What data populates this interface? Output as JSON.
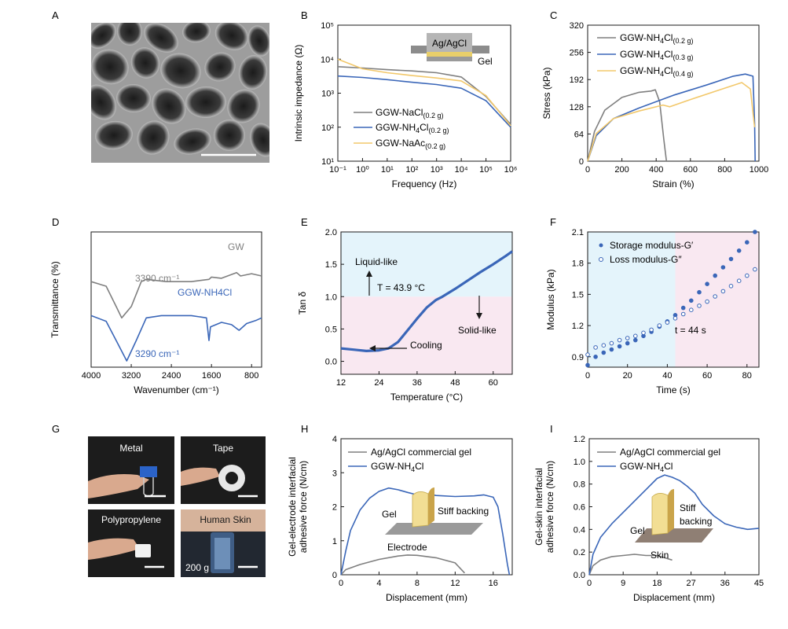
{
  "panels": {
    "A": {
      "letter": "A"
    },
    "B": {
      "letter": "B"
    },
    "C": {
      "letter": "C"
    },
    "D": {
      "letter": "D"
    },
    "E": {
      "letter": "E"
    },
    "F": {
      "letter": "F"
    },
    "G": {
      "letter": "G",
      "photos": [
        "Metal",
        "Tape",
        "Polypropylene",
        "Human Skin"
      ],
      "weight_label": "200 g"
    },
    "H": {
      "letter": "H"
    },
    "I": {
      "letter": "I"
    }
  },
  "colors": {
    "gray": "#7f7f7f",
    "blue": "#3a66b8",
    "yellow": "#f2c86b",
    "cyan_bg": "#e4f4fb",
    "pink_bg": "#f9e8f1"
  },
  "chart_data": [
    {
      "id": "B",
      "type": "line",
      "xlabel": "Frequency (Hz)",
      "ylabel": "Intrinsic impedance (Ω)",
      "xscale": "log",
      "yscale": "log",
      "xlim": [
        0.1,
        1000000
      ],
      "ylim": [
        10,
        100000
      ],
      "xticks": [
        "10⁻¹",
        "10⁰",
        "10¹",
        "10²",
        "10³",
        "10⁴",
        "10⁵",
        "10⁶"
      ],
      "yticks": [
        "10¹",
        "10²",
        "10³",
        "10⁴",
        "10⁵"
      ],
      "inset_labels": [
        "Ag/AgCl",
        "Gel"
      ],
      "legend": [
        "GGW-NaCl(0.2 g)",
        "GGW-NH4Cl(0.2 g)",
        "GGW-NaAc(0.2 g)"
      ],
      "series": [
        {
          "name": "GGW-NaCl",
          "color": "gray",
          "x": [
            0.1,
            1,
            10,
            100,
            1000,
            10000,
            100000,
            1000000
          ],
          "y": [
            6000,
            5500,
            4900,
            4500,
            4000,
            3000,
            800,
            120
          ]
        },
        {
          "name": "GGW-NH4Cl",
          "color": "blue",
          "x": [
            0.1,
            1,
            10,
            100,
            1000,
            10000,
            100000,
            1000000
          ],
          "y": [
            3200,
            2900,
            2500,
            2100,
            1800,
            1400,
            600,
            100
          ]
        },
        {
          "name": "GGW-NaAc",
          "color": "yellow",
          "x": [
            0.1,
            1,
            10,
            100,
            1000,
            10000,
            100000,
            1000000
          ],
          "y": [
            10000,
            5200,
            4000,
            3300,
            2800,
            2300,
            850,
            110
          ]
        }
      ]
    },
    {
      "id": "C",
      "type": "line",
      "xlabel": "Strain (%)",
      "ylabel": "Stress (kPa)",
      "xlim": [
        0,
        1000
      ],
      "ylim": [
        0,
        320
      ],
      "xticks": [
        0,
        200,
        400,
        600,
        800,
        1000
      ],
      "yticks": [
        0,
        64,
        128,
        192,
        256,
        320
      ],
      "legend": [
        "GGW-NH4Cl(0.2 g)",
        "GGW-NH4Cl(0.3 g)",
        "GGW-NH4Cl(0.4 g)"
      ],
      "series": [
        {
          "name": "0.2 g",
          "color": "gray",
          "x": [
            0,
            40,
            100,
            200,
            300,
            370,
            395,
            420,
            445,
            460
          ],
          "y": [
            0,
            70,
            120,
            150,
            162,
            165,
            168,
            140,
            50,
            0
          ]
        },
        {
          "name": "0.3 g",
          "color": "blue",
          "x": [
            0,
            50,
            150,
            300,
            500,
            700,
            850,
            920,
            965,
            975,
            978
          ],
          "y": [
            0,
            60,
            100,
            125,
            155,
            180,
            200,
            205,
            200,
            90,
            0
          ]
        },
        {
          "name": "0.4 g",
          "color": "yellow",
          "x": [
            0,
            50,
            150,
            300,
            440,
            480,
            600,
            750,
            900,
            950,
            975
          ],
          "y": [
            0,
            65,
            100,
            118,
            132,
            128,
            145,
            165,
            185,
            170,
            80
          ]
        }
      ]
    },
    {
      "id": "D",
      "type": "line",
      "xlabel": "Wavenumber (cm⁻¹)",
      "ylabel": "Transmittance (%)",
      "xlim": [
        4000,
        600
      ],
      "xticks": [
        4000,
        3200,
        2400,
        1600,
        800
      ],
      "annotations": [
        "GW",
        "3390 cm⁻¹",
        "GGW-NH4Cl",
        "3290 cm⁻¹"
      ],
      "series": [
        {
          "name": "GW",
          "color": "gray",
          "x": [
            4000,
            3700,
            3500,
            3390,
            3200,
            3000,
            2900,
            2500,
            2000,
            1650,
            1600,
            1400,
            1100,
            1020,
            800,
            600
          ],
          "y": [
            0.3,
            0.34,
            0.52,
            0.62,
            0.52,
            0.3,
            0.28,
            0.3,
            0.3,
            0.28,
            0.26,
            0.27,
            0.22,
            0.25,
            0.23,
            0.25
          ]
        },
        {
          "name": "GGW-NH4Cl",
          "color": "blue",
          "x": [
            4000,
            3700,
            3500,
            3290,
            3100,
            2900,
            2600,
            2000,
            1700,
            1650,
            1620,
            1400,
            1200,
            1050,
            900,
            700,
            600
          ],
          "y": [
            0.6,
            0.65,
            0.82,
            1.0,
            0.82,
            0.62,
            0.6,
            0.6,
            0.62,
            0.82,
            0.7,
            0.66,
            0.68,
            0.73,
            0.67,
            0.64,
            0.62
          ]
        }
      ]
    },
    {
      "id": "E",
      "type": "line",
      "xlabel": "Temperature (°C)",
      "ylabel": "Tan δ",
      "xlim": [
        12,
        66
      ],
      "ylim": [
        -0.2,
        2.0
      ],
      "xticks": [
        12,
        24,
        36,
        48,
        60
      ],
      "yticks": [
        "0.0",
        "0.5",
        "1.0",
        "1.5",
        "2.0"
      ],
      "annotations": [
        "Liquid-like",
        "T = 43.9 °C",
        "Solid-like",
        "Cooling"
      ],
      "series": [
        {
          "name": "tan delta",
          "color": "blue",
          "x": [
            12,
            16,
            20,
            24,
            27,
            30,
            33,
            36,
            39,
            42,
            44,
            48,
            52,
            56,
            60,
            64,
            66
          ],
          "y": [
            0.2,
            0.18,
            0.16,
            0.17,
            0.2,
            0.3,
            0.48,
            0.66,
            0.83,
            0.95,
            1.0,
            1.12,
            1.25,
            1.38,
            1.5,
            1.63,
            1.7
          ]
        }
      ]
    },
    {
      "id": "F",
      "type": "scatter",
      "xlabel": "Time (s)",
      "ylabel": "Modulus (kPa)",
      "xlim": [
        0,
        86
      ],
      "ylim": [
        0.8,
        2.1
      ],
      "xticks": [
        0,
        20,
        40,
        60,
        80
      ],
      "yticks": [
        "0.9",
        "1.2",
        "1.5",
        "1.8",
        "2.1"
      ],
      "legend": [
        "Storage modulus-G′",
        "Loss modulus-G″"
      ],
      "annotations": [
        "t = 44 s"
      ],
      "series": [
        {
          "name": "G'",
          "color": "blue",
          "filled": true,
          "x": [
            0,
            4,
            8,
            12,
            16,
            20,
            24,
            28,
            32,
            36,
            40,
            44,
            48,
            52,
            56,
            60,
            64,
            68,
            72,
            76,
            80,
            84
          ],
          "y": [
            0.82,
            0.9,
            0.94,
            0.97,
            1.0,
            1.03,
            1.06,
            1.1,
            1.14,
            1.19,
            1.24,
            1.3,
            1.37,
            1.44,
            1.52,
            1.6,
            1.68,
            1.76,
            1.84,
            1.92,
            2.0,
            2.1
          ]
        },
        {
          "name": "G''",
          "color": "blue",
          "filled": false,
          "x": [
            0,
            4,
            8,
            12,
            16,
            20,
            24,
            28,
            32,
            36,
            40,
            44,
            48,
            52,
            56,
            60,
            64,
            68,
            72,
            76,
            80,
            84
          ],
          "y": [
            0.92,
            0.99,
            1.01,
            1.03,
            1.06,
            1.08,
            1.1,
            1.13,
            1.16,
            1.2,
            1.23,
            1.27,
            1.31,
            1.35,
            1.39,
            1.43,
            1.48,
            1.53,
            1.58,
            1.63,
            1.68,
            1.74
          ]
        }
      ]
    },
    {
      "id": "H",
      "type": "line",
      "xlabel": "Displacement (mm)",
      "ylabel": "Gel-electrode interfacial adhesive force (N/cm)",
      "xlim": [
        0,
        18
      ],
      "ylim": [
        0,
        4
      ],
      "xticks": [
        0,
        4,
        8,
        12,
        16
      ],
      "yticks": [
        0,
        1,
        2,
        3,
        4
      ],
      "legend": [
        "Ag/AgCl commercial gel",
        "GGW-NH4Cl"
      ],
      "insets": [
        "Gel",
        "Stiff backing",
        "Electrode"
      ],
      "series": [
        {
          "name": "Ag/AgCl commercial gel",
          "color": "gray",
          "x": [
            0,
            0.5,
            2,
            4,
            6,
            7,
            8,
            10,
            12,
            12.5,
            13
          ],
          "y": [
            0,
            0.15,
            0.3,
            0.45,
            0.55,
            0.58,
            0.57,
            0.5,
            0.35,
            0.2,
            0.05
          ]
        },
        {
          "name": "GGW-NH4Cl",
          "color": "blue",
          "x": [
            0,
            0.5,
            1,
            2,
            3,
            4,
            5,
            6,
            7,
            8,
            9,
            10,
            12,
            14,
            15,
            16,
            16.5,
            17,
            17.5,
            17.7
          ],
          "y": [
            0,
            0.7,
            1.3,
            1.9,
            2.25,
            2.45,
            2.55,
            2.5,
            2.42,
            2.35,
            2.38,
            2.33,
            2.3,
            2.32,
            2.35,
            2.28,
            2.0,
            1.2,
            0.3,
            0
          ]
        }
      ]
    },
    {
      "id": "I",
      "type": "line",
      "xlabel": "Displacement (mm)",
      "ylabel": "Gel-skin interfacial adhesive force (N/cm)",
      "xlim": [
        0,
        45
      ],
      "ylim": [
        0,
        1.2
      ],
      "xticks": [
        0,
        9,
        18,
        27,
        36,
        45
      ],
      "yticks": [
        "0.0",
        "0.2",
        "0.4",
        "0.6",
        "0.8",
        "1.0",
        "1.2"
      ],
      "legend": [
        "Ag/AgCl commercial gel",
        "GGW-NH4Cl"
      ],
      "insets": [
        "Gel",
        "Stiff backing",
        "Skin"
      ],
      "series": [
        {
          "name": "Ag/AgCl commercial gel",
          "color": "gray",
          "x": [
            0,
            1,
            3,
            6,
            9,
            12,
            15,
            18,
            20,
            22
          ],
          "y": [
            0,
            0.08,
            0.13,
            0.16,
            0.17,
            0.18,
            0.17,
            0.17,
            0.15,
            0.13
          ]
        },
        {
          "name": "GGW-NH4Cl",
          "color": "blue",
          "x": [
            0,
            1,
            3,
            6,
            9,
            12,
            15,
            18,
            20,
            22,
            24,
            26,
            28,
            30,
            33,
            36,
            39,
            42,
            45
          ],
          "y": [
            0,
            0.18,
            0.33,
            0.45,
            0.55,
            0.65,
            0.75,
            0.85,
            0.88,
            0.86,
            0.83,
            0.78,
            0.72,
            0.62,
            0.52,
            0.45,
            0.42,
            0.4,
            0.41
          ]
        }
      ]
    }
  ]
}
